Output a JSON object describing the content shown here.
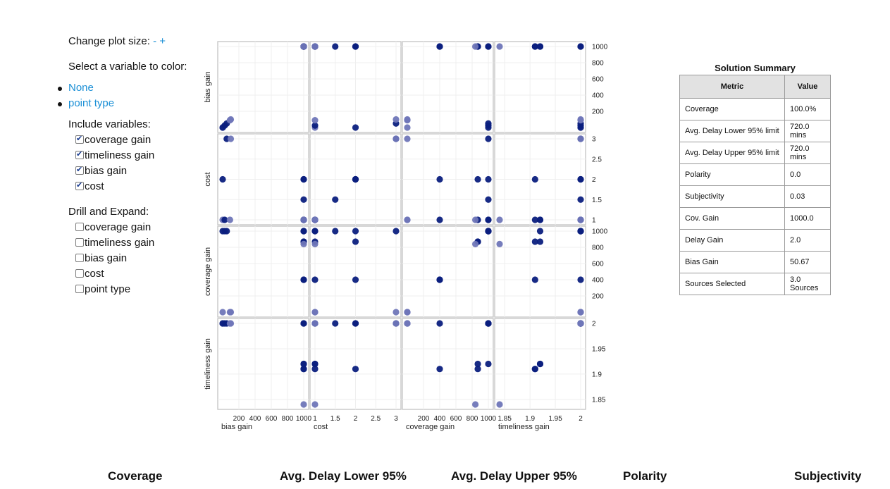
{
  "controls": {
    "plot_size_label": "Change plot size:",
    "plot_size_minus": "-",
    "plot_size_plus": "+",
    "color_prompt": "Select a variable to color:",
    "color_options": [
      "None",
      "point type"
    ],
    "include_title": "Include variables:",
    "include_items": [
      {
        "label": "coverage gain",
        "checked": true
      },
      {
        "label": "timeliness gain",
        "checked": true
      },
      {
        "label": "bias gain",
        "checked": true
      },
      {
        "label": "cost",
        "checked": true
      }
    ],
    "drill_title": "Drill and Expand:",
    "drill_items": [
      {
        "label": "coverage gain",
        "checked": false
      },
      {
        "label": "timeliness gain",
        "checked": false
      },
      {
        "label": "bias gain",
        "checked": false
      },
      {
        "label": "cost",
        "checked": false
      },
      {
        "label": "point type",
        "checked": false
      }
    ]
  },
  "summary": {
    "title": "Solution Summary",
    "col_metric": "Metric",
    "col_value": "Value",
    "rows": [
      {
        "metric": "Coverage",
        "value": "100.0%"
      },
      {
        "metric": "Avg. Delay Lower 95% limit",
        "value": "720.0 mins"
      },
      {
        "metric": "Avg. Delay Upper 95% limit",
        "value": "720.0 mins"
      },
      {
        "metric": "Polarity",
        "value": "0.0"
      },
      {
        "metric": "Subjectivity",
        "value": "0.03"
      },
      {
        "metric": "Cov. Gain",
        "value": "1000.0"
      },
      {
        "metric": "Delay Gain",
        "value": "2.0"
      },
      {
        "metric": "Bias Gain",
        "value": "50.67"
      },
      {
        "metric": "Sources Selected",
        "value": "3.0 Sources"
      }
    ]
  },
  "bottom_headers": [
    "Coverage",
    "Avg. Delay Lower 95%",
    "Avg. Delay Upper 95%",
    "Polarity",
    "Subjectivity"
  ],
  "colors": {
    "point_dark": "#0b1f7e",
    "point_light": "#6f76b8",
    "link": "#1a8fd6",
    "frame": "#c4c4c4",
    "grid": "#efefef"
  },
  "chart_data": {
    "type": "scatter",
    "variables": [
      "bias gain",
      "cost",
      "coverage gain",
      "timeliness gain"
    ],
    "domains": [
      [
        0,
        1000
      ],
      [
        1,
        3
      ],
      [
        0,
        1000
      ],
      [
        1.84,
        2
      ]
    ],
    "ticks": [
      [
        "200",
        "400",
        "600",
        "800",
        "1000"
      ],
      [
        "1",
        "1.5",
        "2",
        "2.5",
        "3"
      ],
      [
        "200",
        "400",
        "600",
        "800",
        "1000"
      ],
      [
        "1.85",
        "1.9",
        "1.95",
        "2"
      ]
    ],
    "tick_values": [
      [
        200,
        400,
        600,
        800,
        1000
      ],
      [
        1,
        1.5,
        2,
        2.5,
        3
      ],
      [
        200,
        400,
        600,
        800,
        1000
      ],
      [
        1.85,
        1.9,
        1.95,
        2
      ]
    ],
    "points": [
      {
        "bias gain": 0,
        "cost": 1,
        "coverage gain": 0,
        "timeliness gain": 2,
        "type": "light"
      },
      {
        "bias gain": 0,
        "cost": 2,
        "coverage gain": 1000,
        "timeliness gain": 2,
        "type": "dark"
      },
      {
        "bias gain": 50,
        "cost": 3,
        "coverage gain": 1000,
        "timeliness gain": 2,
        "type": "dark"
      },
      {
        "bias gain": 25,
        "cost": 1,
        "coverage gain": 1000,
        "timeliness gain": 2,
        "type": "dark"
      },
      {
        "bias gain": 1000,
        "cost": 1,
        "coverage gain": 400,
        "timeliness gain": 1.91,
        "type": "dark"
      },
      {
        "bias gain": 1000,
        "cost": 1,
        "coverage gain": 870,
        "timeliness gain": 1.92,
        "type": "dark"
      },
      {
        "bias gain": 1000,
        "cost": 2,
        "coverage gain": 400,
        "timeliness gain": 2,
        "type": "dark"
      },
      {
        "bias gain": 1000,
        "cost": 2,
        "coverage gain": 870,
        "timeliness gain": 1.91,
        "type": "dark"
      },
      {
        "bias gain": 1000,
        "cost": 1.5,
        "coverage gain": 1000,
        "timeliness gain": 2,
        "type": "dark"
      },
      {
        "bias gain": 1000,
        "cost": 1,
        "coverage gain": 1000,
        "timeliness gain": 1.92,
        "type": "dark"
      },
      {
        "bias gain": 1000,
        "cost": 1,
        "coverage gain": 840,
        "timeliness gain": 1.84,
        "type": "light"
      },
      {
        "bias gain": 100,
        "cost": 3,
        "coverage gain": 0,
        "timeliness gain": 2,
        "type": "light"
      },
      {
        "bias gain": 90,
        "cost": 1,
        "coverage gain": 0,
        "timeliness gain": 2,
        "type": "light"
      }
    ]
  }
}
